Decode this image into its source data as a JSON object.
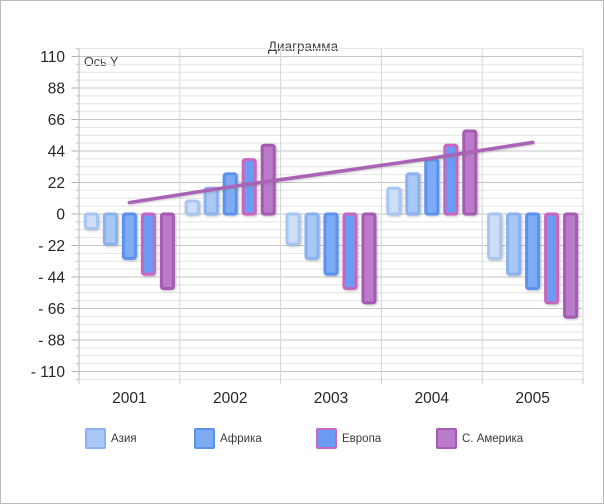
{
  "window": {
    "background": "#ffffff",
    "border_color": "#b9b9b9"
  },
  "chart_data": {
    "type": "bar",
    "title": "Диаграмма",
    "y_axis_title": "Ось Y",
    "categories": [
      "2001",
      "2002",
      "2003",
      "2004",
      "2005"
    ],
    "y_ticks": [
      110,
      88,
      66,
      44,
      22,
      0,
      -22,
      -44,
      -66,
      -88,
      -110
    ],
    "y_tick_labels": [
      "110",
      "88",
      "66",
      "44",
      "22",
      "0",
      "- 22",
      "- 44",
      "- 66",
      "- 88",
      "- 110"
    ],
    "ylim": [
      -115.5,
      115.5
    ],
    "grid": {
      "major": true,
      "minor": true,
      "minor_step": 5.5
    },
    "legend_position": "bottom",
    "series": [
      {
        "name": "",
        "in_legend": false,
        "type": "bar",
        "fill": "#cfdef8",
        "border": "#a8c6f2",
        "values": [
          -10,
          9,
          -21,
          18,
          -31
        ]
      },
      {
        "name": "Азия",
        "in_legend": true,
        "type": "bar",
        "fill": "#a9c8f6",
        "border": "#8ab2f0",
        "values": [
          -21,
          18,
          -31,
          28,
          -42
        ]
      },
      {
        "name": "Африка",
        "in_legend": true,
        "type": "bar",
        "fill": "#7eacf4",
        "border": "#5a92ee",
        "values": [
          -31,
          28,
          -42,
          38,
          -52
        ]
      },
      {
        "name": "Европа",
        "in_legend": true,
        "type": "bar",
        "fill": "#6a9cf4",
        "border": "#c966c0",
        "values": [
          -42,
          38,
          -52,
          48,
          -62
        ]
      },
      {
        "name": "С. Америка",
        "in_legend": true,
        "type": "bar",
        "fill": "#ba7cca",
        "border": "#a65ab2",
        "values": [
          -52,
          48,
          -62,
          58,
          -72
        ]
      }
    ],
    "trend_line": {
      "color": "#aa62b6",
      "values": [
        8,
        19,
        29,
        39,
        50
      ]
    },
    "colors": {
      "major_gridline": "#c6c6c6",
      "minor_gridline": "#e4e4e4",
      "vertical_gridline": "#d4d4d4",
      "axis": "#b3b3b3",
      "tick_label": "#262626"
    }
  }
}
